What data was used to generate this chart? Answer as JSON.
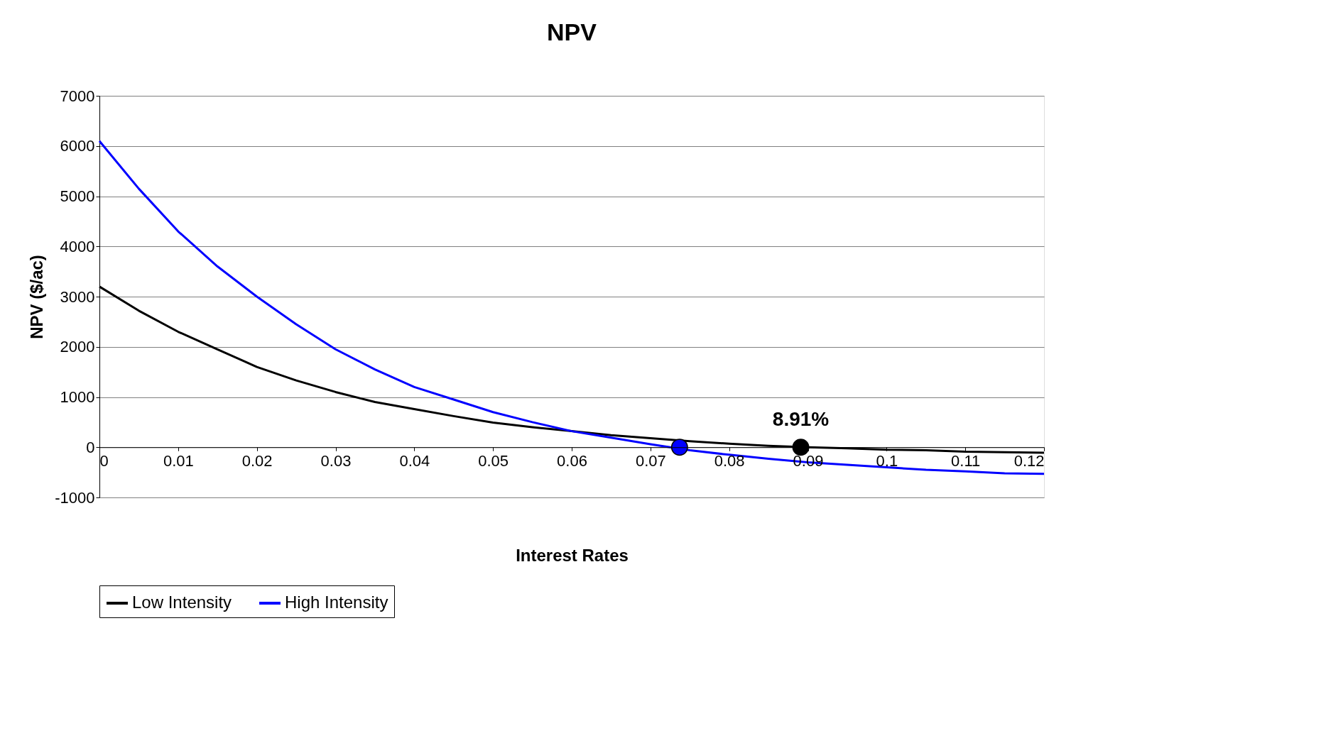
{
  "chart_data": {
    "type": "line",
    "title": "NPV",
    "xlabel": "Interest Rates",
    "ylabel": "NPV ($/ac)",
    "xlim": [
      0,
      0.12
    ],
    "xticks": [
      0,
      0.01,
      0.02,
      0.03,
      0.04,
      0.05,
      0.06,
      0.07,
      0.08,
      0.09,
      0.1,
      0.11,
      0.12
    ],
    "ylim": [
      -1000,
      7000
    ],
    "yticks": [
      -1000,
      0,
      1000,
      2000,
      3000,
      4000,
      5000,
      6000,
      7000
    ],
    "grid": "y",
    "legend": "bottom",
    "marker": "none",
    "line_style": "solid",
    "x": [
      0,
      0.005,
      0.01,
      0.015,
      0.02,
      0.025,
      0.03,
      0.035,
      0.04,
      0.045,
      0.05,
      0.055,
      0.06,
      0.065,
      0.07,
      0.075,
      0.08,
      0.085,
      0.09,
      0.095,
      0.1,
      0.105,
      0.11,
      0.115,
      0.12
    ],
    "series": [
      {
        "name": "Low Intensity",
        "color": "#000000",
        "values": [
          3200,
          2720,
          2300,
          1950,
          1600,
          1330,
          1100,
          900,
          760,
          620,
          490,
          400,
          320,
          240,
          180,
          120,
          70,
          30,
          0,
          -20,
          -50,
          -60,
          -90,
          -100,
          -110
        ]
      },
      {
        "name": "High Intensity",
        "color": "#0000ff",
        "values": [
          6100,
          5150,
          4300,
          3600,
          3000,
          2450,
          1950,
          1550,
          1200,
          950,
          700,
          500,
          320,
          190,
          60,
          -60,
          -150,
          -230,
          -300,
          -350,
          -400,
          -450,
          -480,
          -520,
          -530
        ]
      },
      {
        "type": "scatter",
        "color": "#0000ff",
        "marker": "circle",
        "x": [
          0.0737
        ],
        "values": [
          0
        ]
      },
      {
        "type": "scatter",
        "color": "#000000",
        "marker": "circle",
        "x": [
          0.0891
        ],
        "values": [
          0
        ]
      }
    ],
    "annotations": [
      {
        "text": "8.91%",
        "x": 0.0891,
        "y": 0
      }
    ]
  }
}
